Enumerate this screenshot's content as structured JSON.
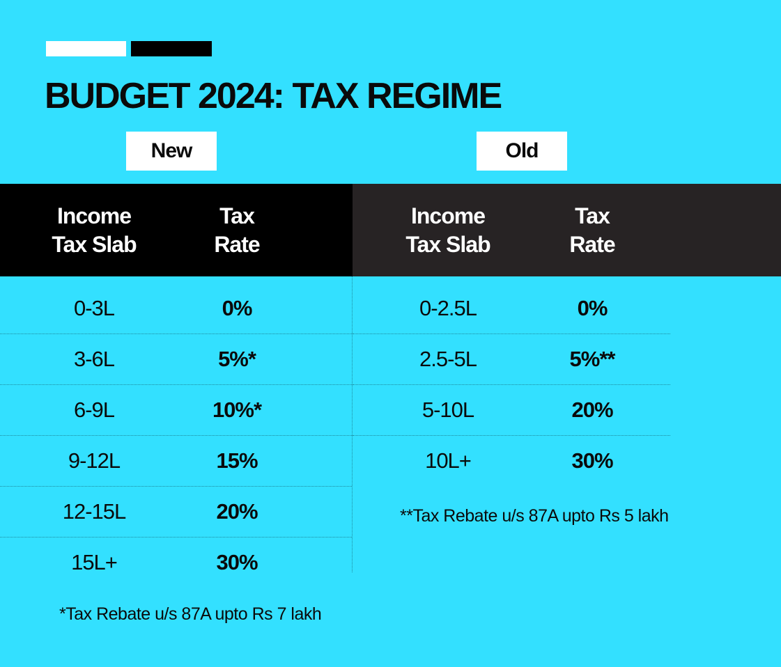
{
  "title": "BUDGET 2024: TAX REGIME",
  "colors": {
    "background": "#33e0ff",
    "new_header": "#000000",
    "old_header": "#272324",
    "accent_white": "#ffffff",
    "accent_black": "#000000"
  },
  "new": {
    "label": "New",
    "headers": [
      "Income\nTax Slab",
      "Tax\nRate"
    ],
    "rows": [
      {
        "slab": "0-3L",
        "rate": "0%"
      },
      {
        "slab": "3-6L",
        "rate": "5%*"
      },
      {
        "slab": "6-9L",
        "rate": "10%*"
      },
      {
        "slab": "9-12L",
        "rate": "15%"
      },
      {
        "slab": "12-15L",
        "rate": "20%"
      },
      {
        "slab": "15L+",
        "rate": "30%"
      }
    ],
    "footnote": "*Tax Rebate u/s 87A upto Rs 7 lakh"
  },
  "old": {
    "label": "Old",
    "headers": [
      "Income\nTax Slab",
      "Tax\nRate"
    ],
    "rows": [
      {
        "slab": "0-2.5L",
        "rate": "0%"
      },
      {
        "slab": "2.5-5L",
        "rate": "5%**"
      },
      {
        "slab": "5-10L",
        "rate": "20%"
      },
      {
        "slab": "10L+",
        "rate": "30%"
      }
    ],
    "footnote": "**Tax Rebate u/s 87A upto Rs 5 lakh"
  }
}
